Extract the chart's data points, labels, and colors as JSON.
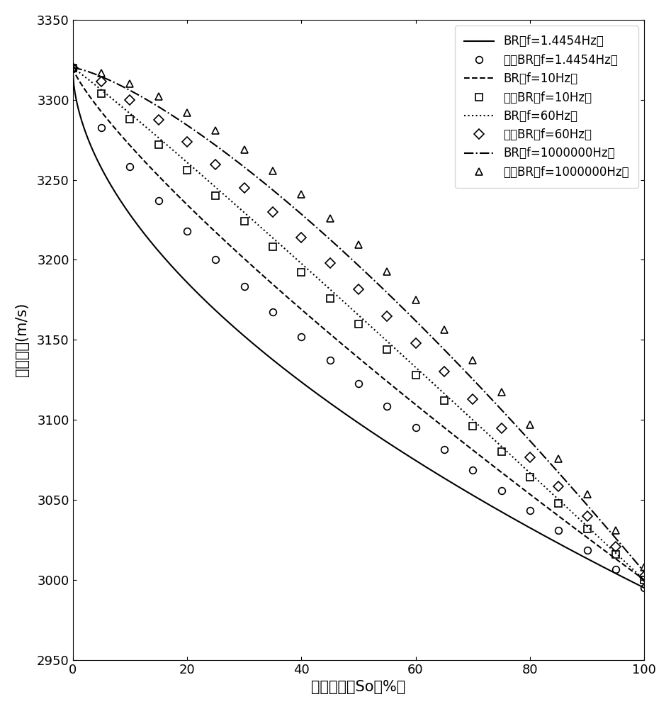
{
  "title": "",
  "xlabel": "含油饱和度So（%）",
  "ylabel": "纵波速度(m/s)",
  "xlim": [
    0,
    100
  ],
  "ylim": [
    2950,
    3350
  ],
  "yticks": [
    2950,
    3000,
    3050,
    3100,
    3150,
    3200,
    3250,
    3300,
    3350
  ],
  "xticks": [
    0,
    20,
    40,
    60,
    80,
    100
  ],
  "legend_entries": [
    "BR（f=1.4454Hz）",
    "改进BR（f=1.4454Hz）",
    "BR（f=10Hz）",
    "改进BR（f=10Hz）",
    "BR（f=60Hz）",
    "改进BR（f=60Hz）",
    "BR（f=1000000Hz）",
    "改进BR（f=1000000Hz）"
  ],
  "BR_1_power": 0.55,
  "BR_1_y0": 3320,
  "BR_1_y1": 2995,
  "iBR_1_power": 0.72,
  "iBR_1_y0": 3320,
  "iBR_1_y1": 2995,
  "BR_10_power": 0.82,
  "BR_10_y0": 3320,
  "BR_10_y1": 3000,
  "iBR_10_power": 1.0,
  "iBR_10_y0": 3320,
  "iBR_10_y1": 3000,
  "BR_60_power": 1.05,
  "BR_60_y0": 3320,
  "BR_60_y1": 3000,
  "iBR_60_power": 1.2,
  "iBR_60_y0": 3320,
  "iBR_60_y1": 3002,
  "BR_1M_power": 1.35,
  "BR_1M_y0": 3320,
  "BR_1M_y1": 3005,
  "iBR_1M_power": 1.5,
  "iBR_1M_y0": 3320,
  "iBR_1M_y1": 3008,
  "n_line_pts": 500,
  "n_marker_pts": 21,
  "linewidth": 1.5,
  "markersize": 7,
  "markeredgewidth": 1.2,
  "color": "#000000",
  "background": "#ffffff"
}
